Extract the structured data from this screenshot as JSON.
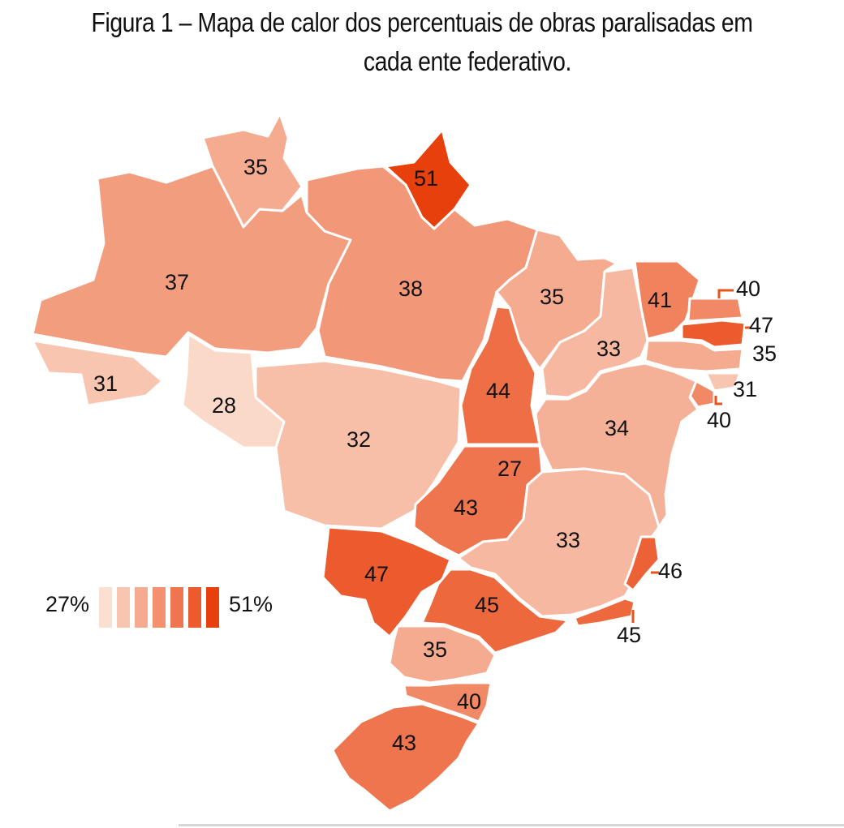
{
  "title": {
    "line1": "Figura 1 – Mapa de calor dos percentuais de obras paralisadas em",
    "line2": "cada ente federativo."
  },
  "legend": {
    "min_label": "27%",
    "max_label": "51%",
    "min": 27,
    "max": 51,
    "steps": 7
  },
  "colors": {
    "low": "#fbe0d1",
    "high": "#e8400c"
  },
  "states": [
    {
      "id": "RR",
      "value": 35
    },
    {
      "id": "AP",
      "value": 51
    },
    {
      "id": "AM",
      "value": 37
    },
    {
      "id": "PA",
      "value": 38
    },
    {
      "id": "AC",
      "value": 31
    },
    {
      "id": "RO",
      "value": 28
    },
    {
      "id": "MT",
      "value": 32
    },
    {
      "id": "TO",
      "value": 44
    },
    {
      "id": "MA",
      "value": 35
    },
    {
      "id": "PI",
      "value": 33
    },
    {
      "id": "CE",
      "value": 41
    },
    {
      "id": "RN",
      "value": 40
    },
    {
      "id": "PB",
      "value": 47
    },
    {
      "id": "PE",
      "value": 35
    },
    {
      "id": "AL",
      "value": 31
    },
    {
      "id": "SE",
      "value": 40
    },
    {
      "id": "BA",
      "value": 34
    },
    {
      "id": "DF",
      "value": 27
    },
    {
      "id": "GO",
      "value": 43
    },
    {
      "id": "MG",
      "value": 33
    },
    {
      "id": "ES",
      "value": 46
    },
    {
      "id": "RJ",
      "value": 45
    },
    {
      "id": "MS",
      "value": 47
    },
    {
      "id": "SP",
      "value": 45
    },
    {
      "id": "PR",
      "value": 35
    },
    {
      "id": "SC",
      "value": 40
    },
    {
      "id": "RS",
      "value": 43
    }
  ]
}
